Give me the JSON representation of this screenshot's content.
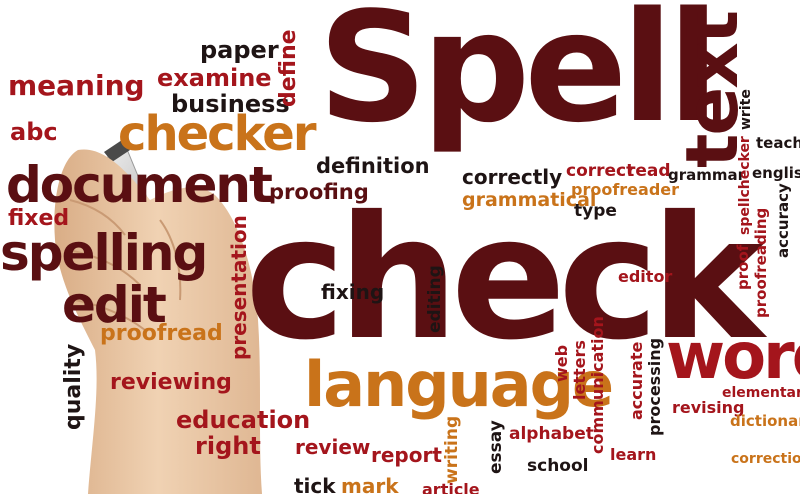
{
  "colors": {
    "dark": "#5a0f12",
    "red": "#a4151c",
    "orange": "#c9731a",
    "black": "#1e1414",
    "skin": "#e8c6a4"
  },
  "hand_icon": "hand-holding-marker-icon",
  "words": {
    "spell": "Spell",
    "check": "check",
    "text": "text",
    "language": "language",
    "word": "word",
    "document": "document",
    "checker": "checker",
    "spelling": "spelling",
    "edit": "edit",
    "meaning": "meaning",
    "abc": "abc",
    "fixed": "fixed",
    "paper": "paper",
    "examine": "examine",
    "business": "business",
    "define": "define",
    "definition": "definition",
    "proofing": "proofing",
    "correctly": "correctly",
    "correct": "correct",
    "read": "read",
    "proofreader": "proofreader",
    "grammar": "grammar",
    "write": "write",
    "teach": "teach",
    "english": "english",
    "grammatical": "grammatical",
    "type": "type",
    "spellchecker": "spellchecker",
    "accuracy": "accuracy",
    "proofreading": "proofreading",
    "proof": "proof",
    "editor": "editor",
    "fixing": "fixing",
    "editing": "editing",
    "presentation": "presentation",
    "proofread": "proofread",
    "quality": "quality",
    "reviewing": "reviewing",
    "education": "education",
    "right": "right",
    "review": "review",
    "report": "report",
    "writing": "writing",
    "essay": "essay",
    "web": "web",
    "letters": "letters",
    "communication": "communication",
    "accurate": "accurate",
    "processing": "processing",
    "revising": "revising",
    "elementary": "elementary",
    "dictionary": "dictionary",
    "correction": "correction",
    "alphabet": "alphabet",
    "school": "school",
    "learn": "learn",
    "tick": "tick",
    "mark": "mark",
    "article": "article"
  }
}
